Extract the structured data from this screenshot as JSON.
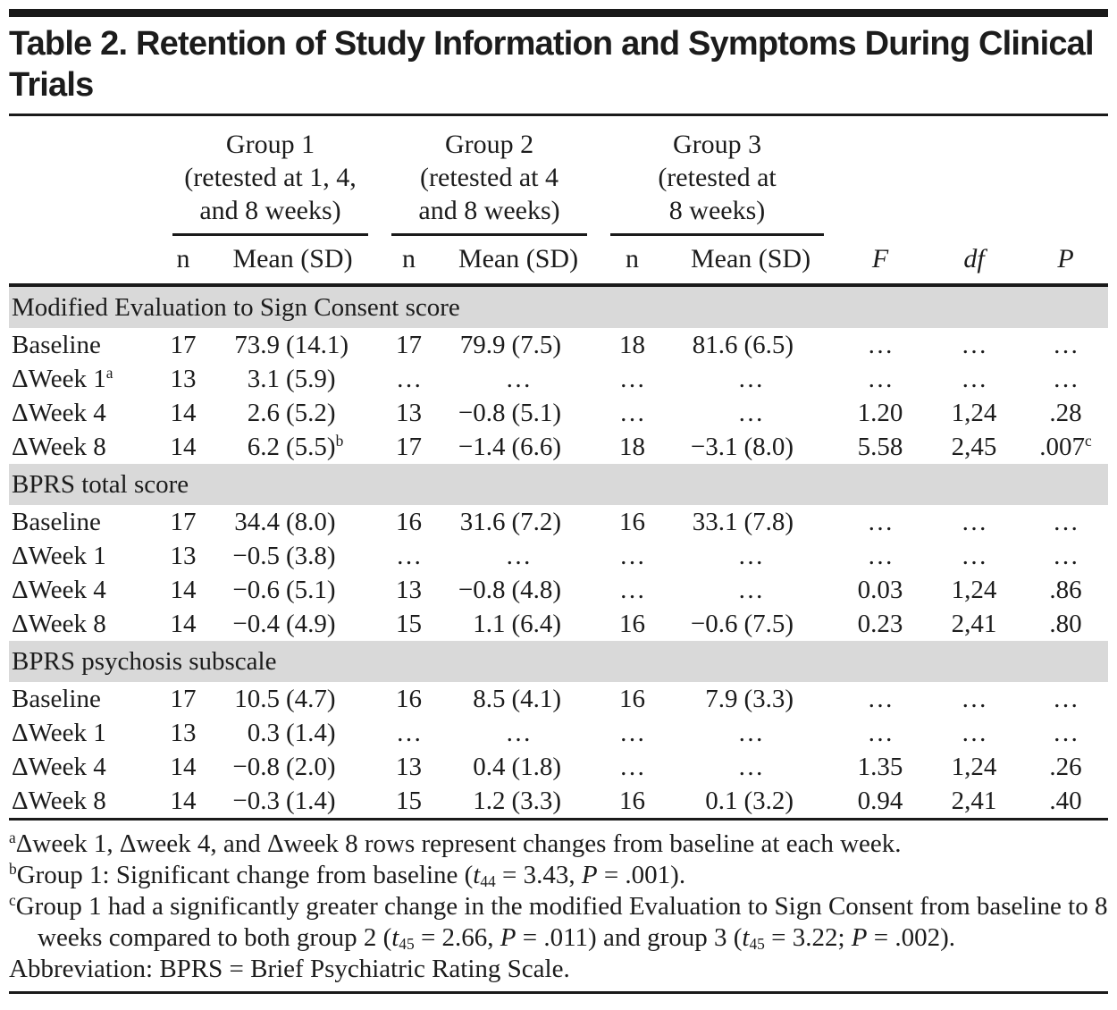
{
  "colors": {
    "section_band": "#d9d9d9",
    "rule": "#1a1a1a",
    "text": "#1c1c1c"
  },
  "title": "Table 2. Retention of Study Information and Symptoms During Clinical Trials",
  "columns": {
    "groups": [
      {
        "label": "Group 1\n(retested at 1, 4,\nand 8 weeks)"
      },
      {
        "label": "Group 2\n(retested at 4\nand 8 weeks)"
      },
      {
        "label": "Group 3\n(retested at\n8 weeks)"
      }
    ],
    "n_label": "n",
    "mean_label": "Mean (SD)",
    "stats": [
      "F",
      "df",
      "P"
    ]
  },
  "sections": [
    {
      "header": "Modified Evaluation to Sign Consent score",
      "rows": [
        {
          "label": "Baseline",
          "label_sup": "",
          "groups": [
            {
              "n": "17",
              "m": "73.9",
              "s": "(14.1)",
              "sup": ""
            },
            {
              "n": "17",
              "m": "79.9",
              "s": "(7.5)",
              "sup": ""
            },
            {
              "n": "18",
              "m": "81.6",
              "s": "(6.5)",
              "sup": ""
            }
          ],
          "f": "…",
          "df": "…",
          "p": "…",
          "p_sup": ""
        },
        {
          "label": "ΔWeek 1",
          "label_sup": "a",
          "groups": [
            {
              "n": "13",
              "m": "3.1",
              "s": "(5.9)",
              "sup": ""
            },
            {
              "n": "…",
              "m": "…",
              "s": "",
              "sup": ""
            },
            {
              "n": "…",
              "m": "…",
              "s": "",
              "sup": ""
            }
          ],
          "f": "…",
          "df": "…",
          "p": "…",
          "p_sup": ""
        },
        {
          "label": "ΔWeek 4",
          "label_sup": "",
          "groups": [
            {
              "n": "14",
              "m": "2.6",
              "s": "(5.2)",
              "sup": ""
            },
            {
              "n": "13",
              "m": "−0.8",
              "s": "(5.1)",
              "sup": ""
            },
            {
              "n": "…",
              "m": "…",
              "s": "",
              "sup": ""
            }
          ],
          "f": "1.20",
          "df": "1,24",
          "p": ".28",
          "p_sup": ""
        },
        {
          "label": "ΔWeek 8",
          "label_sup": "",
          "groups": [
            {
              "n": "14",
              "m": "6.2",
              "s": "(5.5)",
              "sup": "b"
            },
            {
              "n": "17",
              "m": "−1.4",
              "s": "(6.6)",
              "sup": ""
            },
            {
              "n": "18",
              "m": "−3.1",
              "s": "(8.0)",
              "sup": ""
            }
          ],
          "f": "5.58",
          "df": "2,45",
          "p": ".007",
          "p_sup": "c"
        }
      ]
    },
    {
      "header": "BPRS total score",
      "rows": [
        {
          "label": "Baseline",
          "label_sup": "",
          "groups": [
            {
              "n": "17",
              "m": "34.4",
              "s": "(8.0)",
              "sup": ""
            },
            {
              "n": "16",
              "m": "31.6",
              "s": "(7.2)",
              "sup": ""
            },
            {
              "n": "16",
              "m": "33.1",
              "s": "(7.8)",
              "sup": ""
            }
          ],
          "f": "…",
          "df": "…",
          "p": "…",
          "p_sup": ""
        },
        {
          "label": "ΔWeek 1",
          "label_sup": "",
          "groups": [
            {
              "n": "13",
              "m": "−0.5",
              "s": "(3.8)",
              "sup": ""
            },
            {
              "n": "…",
              "m": "…",
              "s": "",
              "sup": ""
            },
            {
              "n": "…",
              "m": "…",
              "s": "",
              "sup": ""
            }
          ],
          "f": "…",
          "df": "…",
          "p": "…",
          "p_sup": ""
        },
        {
          "label": "ΔWeek 4",
          "label_sup": "",
          "groups": [
            {
              "n": "14",
              "m": "−0.6",
              "s": "(5.1)",
              "sup": ""
            },
            {
              "n": "13",
              "m": "−0.8",
              "s": "(4.8)",
              "sup": ""
            },
            {
              "n": "…",
              "m": "…",
              "s": "",
              "sup": ""
            }
          ],
          "f": "0.03",
          "df": "1,24",
          "p": ".86",
          "p_sup": ""
        },
        {
          "label": "ΔWeek 8",
          "label_sup": "",
          "groups": [
            {
              "n": "14",
              "m": "−0.4",
              "s": "(4.9)",
              "sup": ""
            },
            {
              "n": "15",
              "m": "1.1",
              "s": "(6.4)",
              "sup": ""
            },
            {
              "n": "16",
              "m": "−0.6",
              "s": "(7.5)",
              "sup": ""
            }
          ],
          "f": "0.23",
          "df": "2,41",
          "p": ".80",
          "p_sup": ""
        }
      ]
    },
    {
      "header": "BPRS psychosis subscale",
      "rows": [
        {
          "label": "Baseline",
          "label_sup": "",
          "groups": [
            {
              "n": "17",
              "m": "10.5",
              "s": "(4.7)",
              "sup": ""
            },
            {
              "n": "16",
              "m": "8.5",
              "s": "(4.1)",
              "sup": ""
            },
            {
              "n": "16",
              "m": "7.9",
              "s": "(3.3)",
              "sup": ""
            }
          ],
          "f": "…",
          "df": "…",
          "p": "…",
          "p_sup": ""
        },
        {
          "label": "ΔWeek 1",
          "label_sup": "",
          "groups": [
            {
              "n": "13",
              "m": "0.3",
              "s": "(1.4)",
              "sup": ""
            },
            {
              "n": "…",
              "m": "…",
              "s": "",
              "sup": ""
            },
            {
              "n": "…",
              "m": "…",
              "s": "",
              "sup": ""
            }
          ],
          "f": "…",
          "df": "…",
          "p": "…",
          "p_sup": ""
        },
        {
          "label": "ΔWeek 4",
          "label_sup": "",
          "groups": [
            {
              "n": "14",
              "m": "−0.8",
              "s": "(2.0)",
              "sup": ""
            },
            {
              "n": "13",
              "m": "0.4",
              "s": "(1.8)",
              "sup": ""
            },
            {
              "n": "…",
              "m": "…",
              "s": "",
              "sup": ""
            }
          ],
          "f": "1.35",
          "df": "1,24",
          "p": ".26",
          "p_sup": ""
        },
        {
          "label": "ΔWeek 8",
          "label_sup": "",
          "groups": [
            {
              "n": "14",
              "m": "−0.3",
              "s": "(1.4)",
              "sup": ""
            },
            {
              "n": "15",
              "m": "1.2",
              "s": "(3.3)",
              "sup": ""
            },
            {
              "n": "16",
              "m": "0.1",
              "s": "(3.2)",
              "sup": ""
            }
          ],
          "f": "0.94",
          "df": "2,41",
          "p": ".40",
          "p_sup": ""
        }
      ]
    }
  ],
  "footnotes": [
    [
      {
        "sup": "a"
      },
      {
        "t": "Δweek 1, Δweek 4, and Δweek 8 rows represent changes from baseline at each week."
      }
    ],
    [
      {
        "sup": "b"
      },
      {
        "t": "Group 1: Significant change from baseline ("
      },
      {
        "i": "t"
      },
      {
        "sub": "44"
      },
      {
        "t": " = 3.43, "
      },
      {
        "i": "P"
      },
      {
        "t": " = .001)."
      }
    ],
    [
      {
        "sup": "c"
      },
      {
        "t": "Group 1 had a significantly greater change in the modified Evaluation to Sign Consent from baseline to 8 weeks compared to both group 2 ("
      },
      {
        "i": "t"
      },
      {
        "sub": "45"
      },
      {
        "t": " = 2.66, "
      },
      {
        "i": "P"
      },
      {
        "t": " = .011) and group 3 ("
      },
      {
        "i": "t"
      },
      {
        "sub": "45"
      },
      {
        "t": " = 3.22; "
      },
      {
        "i": "P"
      },
      {
        "t": " = .002)."
      }
    ],
    [
      {
        "t": "Abbreviation: BPRS = Brief Psychiatric Rating Scale."
      }
    ]
  ]
}
